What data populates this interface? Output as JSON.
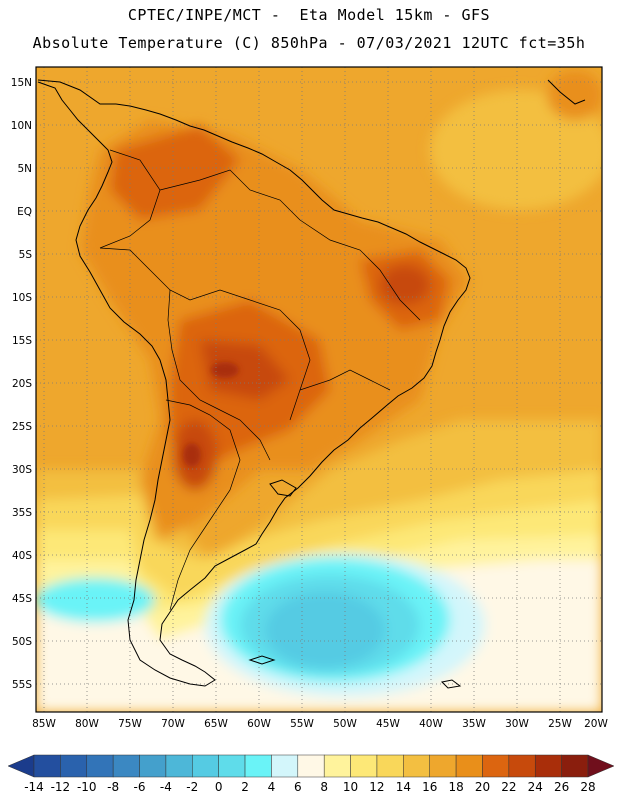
{
  "header": {
    "line1": "CPTEC/INPE/MCT -  Eta Model 15km - GFS",
    "line2": "Absolute Temperature (C) 850hPa - 07/03/2021 12UTC fct=35h"
  },
  "map": {
    "lat_labels": [
      "15N",
      "10N",
      "5N",
      "EQ",
      "5S",
      "10S",
      "15S",
      "20S",
      "25S",
      "30S",
      "35S",
      "40S",
      "45S",
      "50S",
      "55S"
    ],
    "lon_labels": [
      "85W",
      "80W",
      "75W",
      "70W",
      "65W",
      "60W",
      "55W",
      "50W",
      "45W",
      "40W",
      "35W",
      "30W",
      "25W",
      "20W"
    ]
  },
  "colorbar": {
    "labels": [
      "-14",
      "-12",
      "-10",
      "-8",
      "-6",
      "-4",
      "-2",
      "0",
      "2",
      "4",
      "6",
      "8",
      "10",
      "12",
      "14",
      "16",
      "18",
      "20",
      "22",
      "24",
      "26",
      "28"
    ],
    "colors": [
      "#1b3c8c",
      "#234f9f",
      "#2a62ad",
      "#3274b8",
      "#3b88c2",
      "#44a0cc",
      "#4db7d8",
      "#55cbe3",
      "#5fdcea",
      "#6af3f7",
      "#d3f6fb",
      "#fff8e6",
      "#fff39c",
      "#fde877",
      "#f9d75a",
      "#f3bf41",
      "#eea72d",
      "#e98f1a",
      "#dc6510",
      "#c74a0c",
      "#a92e0a",
      "#8a1e0d",
      "#700f1c"
    ]
  }
}
